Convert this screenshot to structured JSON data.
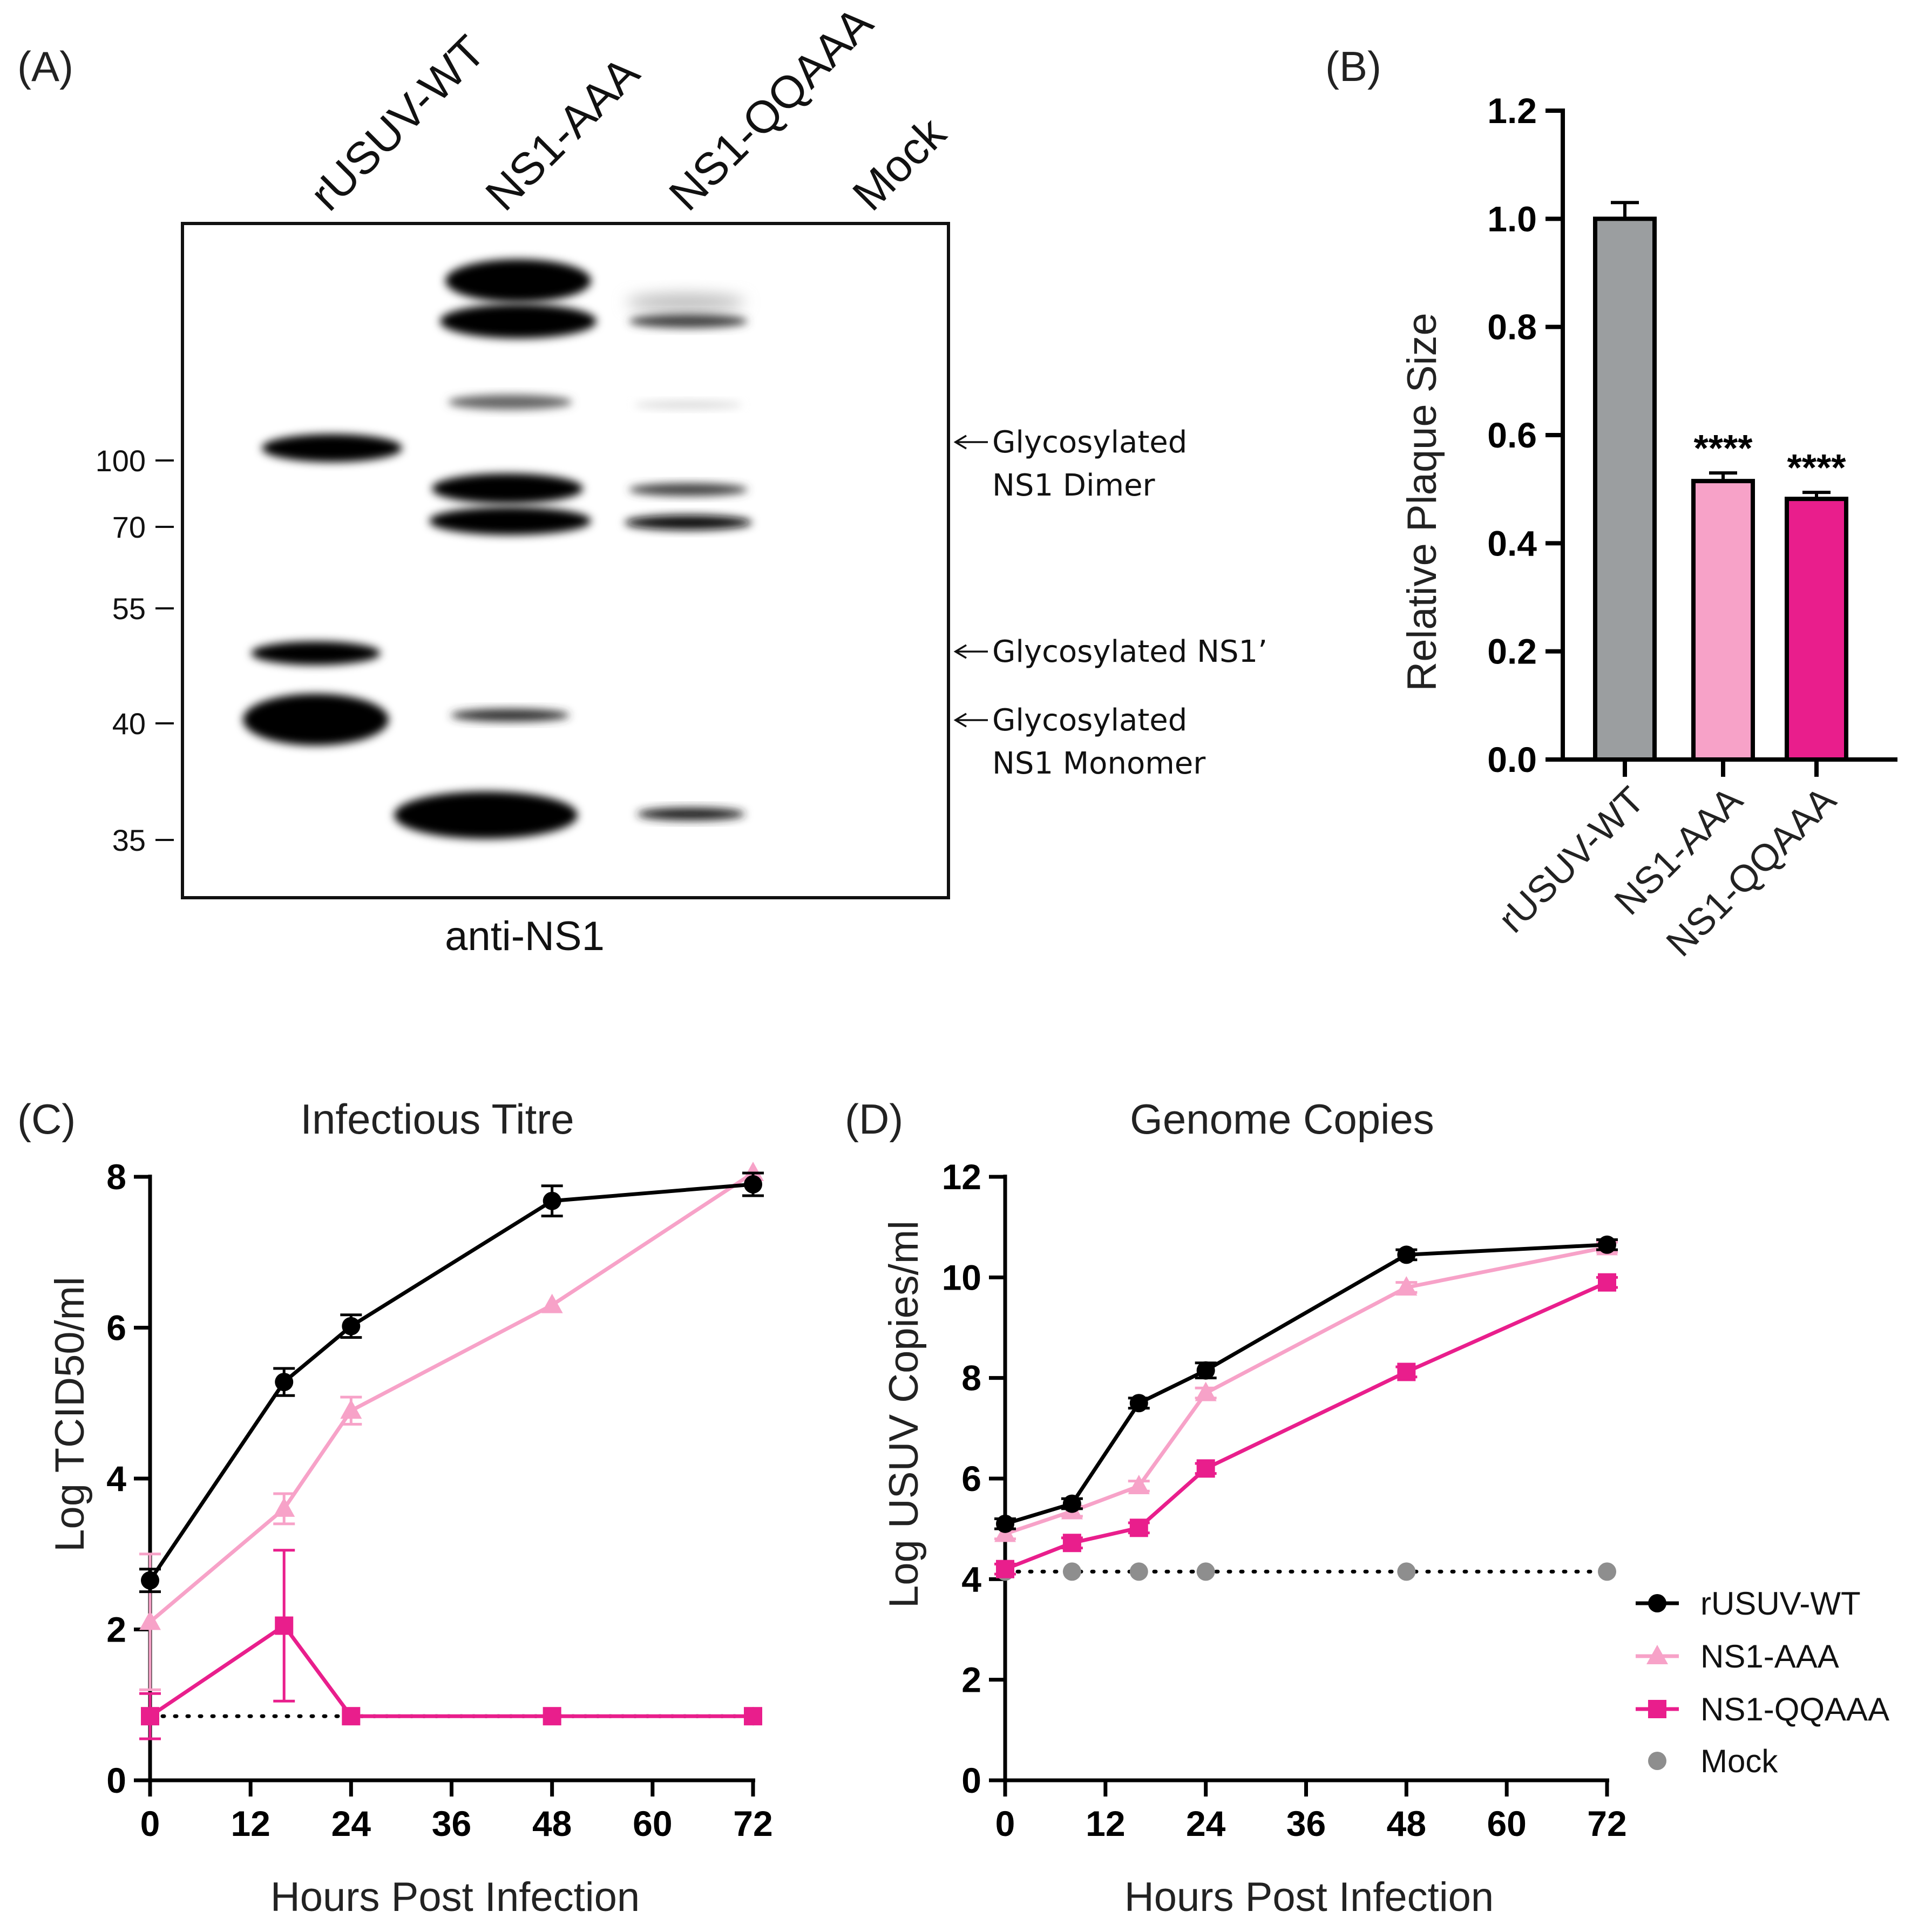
{
  "panelA": {
    "label": "(A)",
    "lanes": [
      "rUSUV-WT",
      "NS1-AAA",
      "NS1-QQAAA",
      "Mock"
    ],
    "markers": [
      "100",
      "70",
      "55",
      "40",
      "35"
    ],
    "annotations": [
      {
        "line1": "Glycosylated",
        "line2": "NS1 Dimer"
      },
      {
        "line1": "Glycosylated NS1’",
        "line2": ""
      },
      {
        "line1": "Glycosylated",
        "line2": "NS1 Monomer"
      }
    ],
    "caption": "anti-NS1"
  },
  "chart_data": [
    {
      "panel": "(B)",
      "type": "bar",
      "title": "",
      "xlabel": "",
      "ylabel": "Relative Plaque Size",
      "ylim": [
        0,
        1.2
      ],
      "yticks": [
        "0.0",
        "0.2",
        "0.4",
        "0.6",
        "0.8",
        "1.0",
        "1.2"
      ],
      "categories": [
        "rUSUV-WT",
        "NS1-AAA",
        "NS1-QQAAA"
      ],
      "values": [
        1.0,
        0.515,
        0.482
      ],
      "errors": [
        0.03,
        0.015,
        0.012
      ],
      "colors": [
        "#9b9ea0",
        "#f7a2c8",
        "#e91e8c"
      ],
      "annotations": [
        "",
        "****",
        "****"
      ]
    },
    {
      "panel": "(C)",
      "type": "line",
      "title": "Infectious Titre",
      "xlabel": "Hours Post Infection",
      "ylabel": "Log TCID50/ml",
      "xlim": [
        0,
        72
      ],
      "ylim": [
        0,
        8
      ],
      "xticks": [
        "0",
        "12",
        "24",
        "36",
        "48",
        "60",
        "72"
      ],
      "yticks": [
        "0",
        "2",
        "4",
        "6",
        "8"
      ],
      "series": [
        {
          "name": "rUSUV-WT",
          "color": "#000000",
          "marker": "circle",
          "x": [
            0,
            16,
            24,
            48,
            72
          ],
          "values": [
            2.65,
            5.28,
            6.02,
            7.68,
            7.9
          ],
          "errors": [
            0.15,
            0.18,
            0.15,
            0.2,
            0.15
          ]
        },
        {
          "name": "NS1-AAA",
          "color": "#f7a2c8",
          "marker": "triangle",
          "x": [
            0,
            16,
            24,
            48,
            72
          ],
          "values": [
            2.1,
            3.6,
            4.9,
            6.3,
            8.05
          ],
          "errors": [
            0.9,
            0.2,
            0.18,
            0.0,
            0.0
          ]
        },
        {
          "name": "NS1-QQAAA",
          "color": "#e91e8c",
          "marker": "square",
          "x": [
            0,
            16,
            24,
            48,
            72
          ],
          "values": [
            0.85,
            2.05,
            0.85,
            0.85,
            0.85
          ],
          "errors": [
            0.3,
            1.0,
            0.0,
            0.0,
            0.0
          ]
        },
        {
          "name": "Mock",
          "color": "#8e8e8e",
          "marker": "circle-dotted",
          "x": [
            0,
            72
          ],
          "values": [
            0.85,
            0.85
          ],
          "errors": [
            0,
            0
          ]
        }
      ]
    },
    {
      "panel": "(D)",
      "type": "line",
      "title": "Genome Copies",
      "xlabel": "Hours Post Infection",
      "ylabel": "Log USUV Copies/ml",
      "xlim": [
        0,
        72
      ],
      "ylim": [
        0,
        12
      ],
      "xticks": [
        "0",
        "12",
        "24",
        "36",
        "48",
        "60",
        "72"
      ],
      "yticks": [
        "0",
        "2",
        "4",
        "6",
        "8",
        "10",
        "12"
      ],
      "series": [
        {
          "name": "rUSUV-WT",
          "color": "#000000",
          "marker": "circle",
          "x": [
            0,
            8,
            16,
            24,
            48,
            72
          ],
          "values": [
            5.1,
            5.5,
            7.5,
            8.15,
            10.45,
            10.65
          ],
          "errors": [
            0.1,
            0.1,
            0.1,
            0.15,
            0.1,
            0.1
          ]
        },
        {
          "name": "NS1-AAA",
          "color": "#f7a2c8",
          "marker": "triangle",
          "x": [
            0,
            8,
            16,
            24,
            48,
            72
          ],
          "values": [
            4.9,
            5.35,
            5.85,
            7.7,
            9.8,
            10.6
          ],
          "errors": [
            0.1,
            0.1,
            0.1,
            0.1,
            0.1,
            0.1
          ]
        },
        {
          "name": "NS1-QQAAA",
          "color": "#e91e8c",
          "marker": "square",
          "x": [
            0,
            8,
            16,
            24,
            48,
            72
          ],
          "values": [
            4.2,
            4.72,
            5.02,
            6.2,
            8.12,
            9.9
          ],
          "errors": [
            0.1,
            0.1,
            0.1,
            0.1,
            0.1,
            0.1
          ]
        },
        {
          "name": "Mock",
          "color": "#8e8e8e",
          "marker": "circle-dotted",
          "x": [
            0,
            8,
            16,
            24,
            48,
            72
          ],
          "values": [
            4.15,
            4.15,
            4.15,
            4.15,
            4.15,
            4.15
          ],
          "errors": [
            0,
            0,
            0,
            0,
            0,
            0
          ]
        }
      ],
      "legend": [
        "rUSUV-WT",
        "NS1-AAA",
        "NS1-QQAAA",
        "Mock"
      ]
    }
  ]
}
